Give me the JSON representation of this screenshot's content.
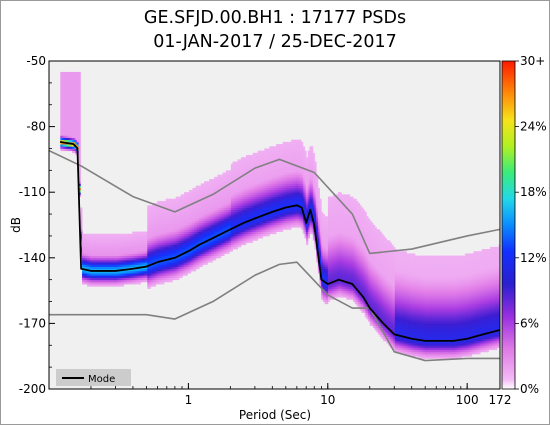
{
  "chart_data": {
    "type": "heatmap",
    "title": [
      "GE.SFJD.00.BH1 : 17177 PSDs",
      "01-JAN-2017 / 25-DEC-2017"
    ],
    "xlabel": "Period (Sec)",
    "ylabel": "dB",
    "x_scale": "log",
    "xlim": [
      0.1,
      172
    ],
    "ylim": [
      -200,
      -50
    ],
    "x_ticks": [
      1,
      10,
      100,
      172
    ],
    "y_ticks": [
      -200,
      -170,
      -140,
      -110,
      -80,
      -50
    ],
    "colorbar": {
      "ticks": [
        "0%",
        "6%",
        "12%",
        "18%",
        "24%",
        "30+"
      ],
      "range": [
        0,
        30
      ]
    },
    "legend": {
      "entries": [
        "Mode"
      ],
      "placement": "bottom-left"
    },
    "mode_curve": {
      "name": "Mode",
      "x": [
        0.12,
        0.15,
        0.16,
        0.17,
        0.2,
        0.3,
        0.4,
        0.5,
        0.6,
        0.8,
        1.0,
        1.2,
        1.5,
        2.0,
        2.5,
        3.0,
        4.0,
        5.0,
        6.0,
        6.5,
        7.0,
        7.5,
        8.0,
        9.0,
        10.0,
        12.0,
        15.0,
        18.0,
        20.0,
        25.0,
        30.0,
        40.0,
        50.0,
        60.0,
        80.0,
        100.0,
        130.0,
        172.0
      ],
      "y": [
        -87,
        -88,
        -90,
        -145,
        -146,
        -146,
        -145,
        -144,
        -142,
        -140,
        -137,
        -134,
        -131,
        -127,
        -124,
        -122,
        -119,
        -117,
        -116,
        -117,
        -124,
        -118,
        -125,
        -150,
        -152,
        -150,
        -152,
        -158,
        -163,
        -170,
        -175,
        -177,
        -178,
        -178,
        -178,
        -177,
        -175,
        -173
      ]
    },
    "nhnm": {
      "x": [
        0.1,
        0.17,
        0.4,
        0.8,
        1.5,
        3.0,
        4.5,
        8.0,
        15.0,
        20.0,
        40.0,
        100.0,
        172.0
      ],
      "y": [
        -91,
        -98,
        -112,
        -119,
        -111,
        -99,
        -95,
        -101,
        -120,
        -138,
        -136,
        -130,
        -127
      ]
    },
    "nlnm": {
      "x": [
        0.1,
        0.2,
        0.5,
        0.8,
        1.5,
        3.0,
        4.5,
        6.0,
        10.0,
        15.0,
        20.0,
        30.0,
        50.0,
        100.0,
        172.0
      ],
      "y": [
        -166,
        -166,
        -166,
        -168,
        -160,
        -148,
        -143,
        -142,
        -157,
        -163,
        -163,
        -183,
        -187,
        -186,
        -186
      ]
    }
  }
}
